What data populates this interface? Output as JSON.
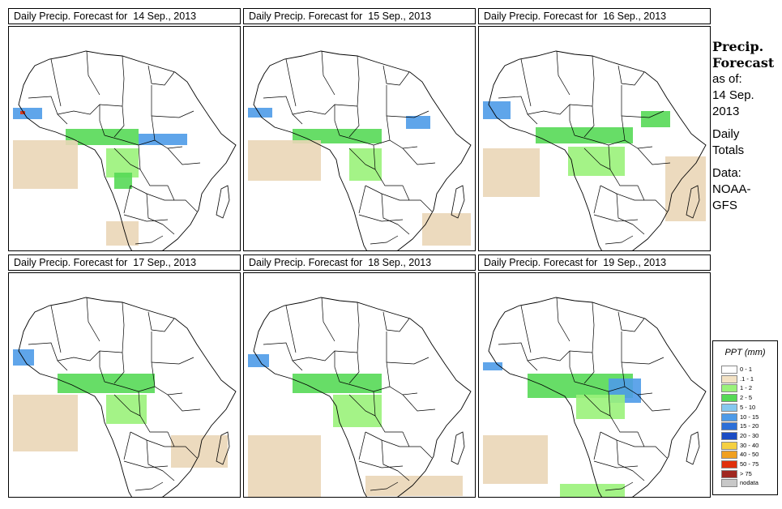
{
  "panels": [
    {
      "title": "Daily Precip. Forecast for  14 Sep., 2013",
      "date": "14 Sep., 2013"
    },
    {
      "title": "Daily Precip. Forecast for  15 Sep., 2013",
      "date": "15 Sep., 2013"
    },
    {
      "title": "Daily Precip. Forecast for  16 Sep., 2013",
      "date": "16 Sep., 2013"
    },
    {
      "title": "Daily Precip. Forecast for  17 Sep., 2013",
      "date": "17 Sep., 2013"
    },
    {
      "title": "Daily Precip. Forecast for  18 Sep., 2013",
      "date": "18 Sep., 2013"
    },
    {
      "title": "Daily Precip. Forecast for  19 Sep., 2013",
      "date": "19 Sep., 2013"
    }
  ],
  "side_info": {
    "title_line1": "Precip.",
    "title_line2": "Forecast",
    "asof_label": "as of:",
    "asof_date_line1": "14 Sep.",
    "asof_date_line2": "2013",
    "totals_line1": "Daily",
    "totals_line2": "Totals",
    "data_line1": "Data:",
    "data_line2": "NOAA-",
    "data_line3": "GFS"
  },
  "legend": {
    "title": "PPT (mm)",
    "items": [
      {
        "label": "0 - 1",
        "color": "#ffffff"
      },
      {
        "label": ".1 - 1",
        "color": "#f3e2c4"
      },
      {
        "label": "1 - 2",
        "color": "#9af27a"
      },
      {
        "label": "2 - 5",
        "color": "#56d956"
      },
      {
        "label": "5 - 10",
        "color": "#86c8ef"
      },
      {
        "label": "10 - 15",
        "color": "#4e9be8"
      },
      {
        "label": "15 - 20",
        "color": "#2c6fd8"
      },
      {
        "label": "20 - 30",
        "color": "#1c4cc4"
      },
      {
        "label": "30 - 40",
        "color": "#f5d040"
      },
      {
        "label": "40 - 50",
        "color": "#f0a020"
      },
      {
        "label": "50 - 75",
        "color": "#e0300c"
      },
      {
        "label": "> 75",
        "color": "#a02820"
      },
      {
        "label": "nodata",
        "color": "#c8c8c8"
      }
    ]
  },
  "colors": {
    "land": "#ffffff",
    "dry_ocean": "#ead6b7",
    "light_rain": "#9af27a",
    "moderate_rain": "#56d956",
    "blue_rain": "#4e9be8",
    "heavy_rain": "#e0300c",
    "border": "#000000"
  }
}
